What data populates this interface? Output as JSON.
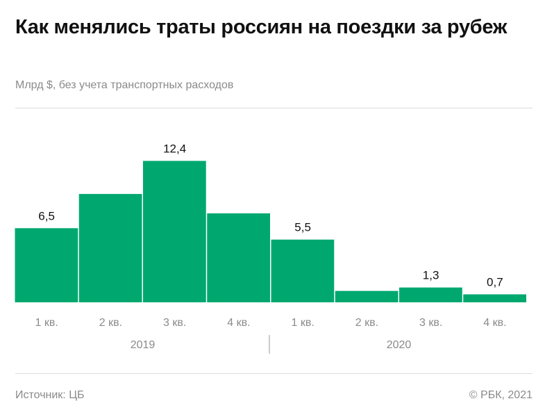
{
  "title": "Как менялись траты россиян на поездки за рубеж",
  "subtitle": "Млрд $, без учета транспортных расходов",
  "source": "Источник: ЦБ",
  "copyright": "© РБК, 2021",
  "colors": {
    "bar": "#00a86f",
    "text": "#111111",
    "muted": "#8a8a8a"
  },
  "chart_data": {
    "type": "bar",
    "categories": [
      "1 кв.",
      "2 кв.",
      "3 кв.",
      "4 кв.",
      "1 кв.",
      "2 кв.",
      "3 кв.",
      "4 кв."
    ],
    "groups": [
      {
        "label": "2019",
        "categories": [
          0,
          1,
          2,
          3
        ]
      },
      {
        "label": "2020",
        "categories": [
          4,
          5,
          6,
          7
        ]
      }
    ],
    "values": [
      6.5,
      9.5,
      12.4,
      7.8,
      5.5,
      1.0,
      1.3,
      0.7
    ],
    "data_labels": [
      "6,5",
      "",
      "12,4",
      "",
      "5,5",
      "",
      "1,3",
      "0,7"
    ],
    "ylim": [
      0,
      12.4
    ],
    "grid": false,
    "xlabel": "",
    "ylabel": ""
  }
}
